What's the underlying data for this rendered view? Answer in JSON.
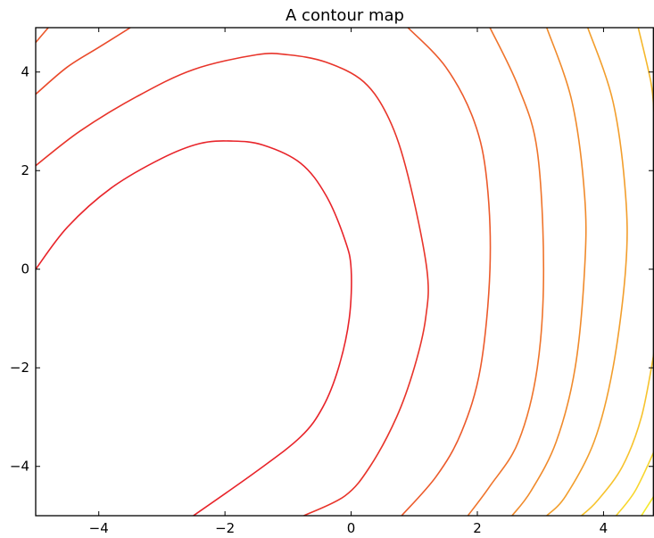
{
  "chart_data": {
    "type": "contour",
    "title": "A contour map",
    "xlabel": "",
    "ylabel": "",
    "xlim": [
      -5,
      4.8
    ],
    "ylim": [
      -5,
      4.9
    ],
    "xticks": [
      -4,
      -2,
      0,
      2,
      4
    ],
    "yticks": [
      -4,
      -2,
      0,
      2,
      4
    ],
    "xtick_labels": [
      "−4",
      "−2",
      "0",
      "2",
      "4"
    ],
    "ytick_labels": [
      "−4",
      "−2",
      "0",
      "2",
      "4"
    ],
    "grid": false,
    "contours": [
      {
        "color": "#e8242a",
        "points": [
          [
            -5,
            0
          ],
          [
            -4.5,
            0.85
          ],
          [
            -3.8,
            1.65
          ],
          [
            -3,
            2.25
          ],
          [
            -2.4,
            2.55
          ],
          [
            -1.9,
            2.6
          ],
          [
            -1.4,
            2.52
          ],
          [
            -0.8,
            2.15
          ],
          [
            -0.4,
            1.5
          ],
          [
            -0.1,
            0.6
          ],
          [
            0,
            0
          ],
          [
            -0.03,
            -1
          ],
          [
            -0.2,
            -2
          ],
          [
            -0.45,
            -2.8
          ],
          [
            -0.8,
            -3.4
          ],
          [
            -1.5,
            -4.1
          ],
          [
            -2.5,
            -5
          ]
        ]
      },
      {
        "color": "#e8342a",
        "points": [
          [
            -5,
            2.1
          ],
          [
            -4.3,
            2.8
          ],
          [
            -3.4,
            3.5
          ],
          [
            -2.5,
            4.05
          ],
          [
            -1.5,
            4.35
          ],
          [
            -1,
            4.35
          ],
          [
            -0.4,
            4.2
          ],
          [
            0.2,
            3.8
          ],
          [
            0.6,
            3.05
          ],
          [
            0.9,
            1.9
          ],
          [
            1.2,
            0
          ],
          [
            1.18,
            -1
          ],
          [
            1,
            -2
          ],
          [
            0.72,
            -3
          ],
          [
            0.3,
            -4
          ],
          [
            -0.1,
            -4.6
          ],
          [
            -0.75,
            -5
          ]
        ]
      },
      {
        "color": "#ea4a2a",
        "points": [
          [
            -5,
            3.55
          ],
          [
            -4.5,
            4.1
          ],
          [
            -4,
            4.5
          ],
          [
            -3.5,
            4.9
          ]
        ]
      },
      {
        "color": "#eb582b",
        "points": [
          [
            -5,
            4.6
          ],
          [
            -4.8,
            4.9
          ]
        ]
      },
      {
        "color": "#ec5a2b",
        "points": [
          [
            0.9,
            4.9
          ],
          [
            1.5,
            4.1
          ],
          [
            1.95,
            3
          ],
          [
            2.15,
            1.8
          ],
          [
            2.2,
            0
          ],
          [
            2.05,
            -2
          ],
          [
            1.75,
            -3.3
          ],
          [
            1.35,
            -4.2
          ],
          [
            0.8,
            -5
          ]
        ]
      },
      {
        "color": "#ef742b",
        "points": [
          [
            2.2,
            4.9
          ],
          [
            2.65,
            3.7
          ],
          [
            2.95,
            2.4
          ],
          [
            3.05,
            0
          ],
          [
            2.95,
            -2
          ],
          [
            2.65,
            -3.5
          ],
          [
            2.2,
            -4.4
          ],
          [
            1.85,
            -5
          ]
        ]
      },
      {
        "color": "#f08a2b",
        "points": [
          [
            3.1,
            4.9
          ],
          [
            3.5,
            3.4
          ],
          [
            3.7,
            1.5
          ],
          [
            3.7,
            0
          ],
          [
            3.55,
            -2
          ],
          [
            3.25,
            -3.5
          ],
          [
            2.85,
            -4.5
          ],
          [
            2.55,
            -5
          ]
        ]
      },
      {
        "color": "#f29e2c",
        "points": [
          [
            3.75,
            4.9
          ],
          [
            4.15,
            3.4
          ],
          [
            4.35,
            1.5
          ],
          [
            4.35,
            0
          ],
          [
            4.15,
            -2
          ],
          [
            3.85,
            -3.5
          ],
          [
            3.4,
            -4.6
          ],
          [
            3.1,
            -5
          ]
        ]
      },
      {
        "color": "#f5b72c",
        "points": [
          [
            4.55,
            4.9
          ],
          [
            4.75,
            3.8
          ],
          [
            4.8,
            3.2
          ]
        ]
      },
      {
        "color": "#f7c32d",
        "points": [
          [
            4.8,
            -1.7
          ],
          [
            4.6,
            -3
          ],
          [
            4.3,
            -4
          ],
          [
            3.9,
            -4.7
          ],
          [
            3.65,
            -5
          ]
        ]
      },
      {
        "color": "#f8d62d",
        "points": [
          [
            4.8,
            -3.7
          ],
          [
            4.5,
            -4.5
          ],
          [
            4.2,
            -5
          ]
        ]
      },
      {
        "color": "#f4ea2c",
        "points": [
          [
            4.8,
            -4.6
          ],
          [
            4.6,
            -5
          ]
        ]
      }
    ]
  }
}
